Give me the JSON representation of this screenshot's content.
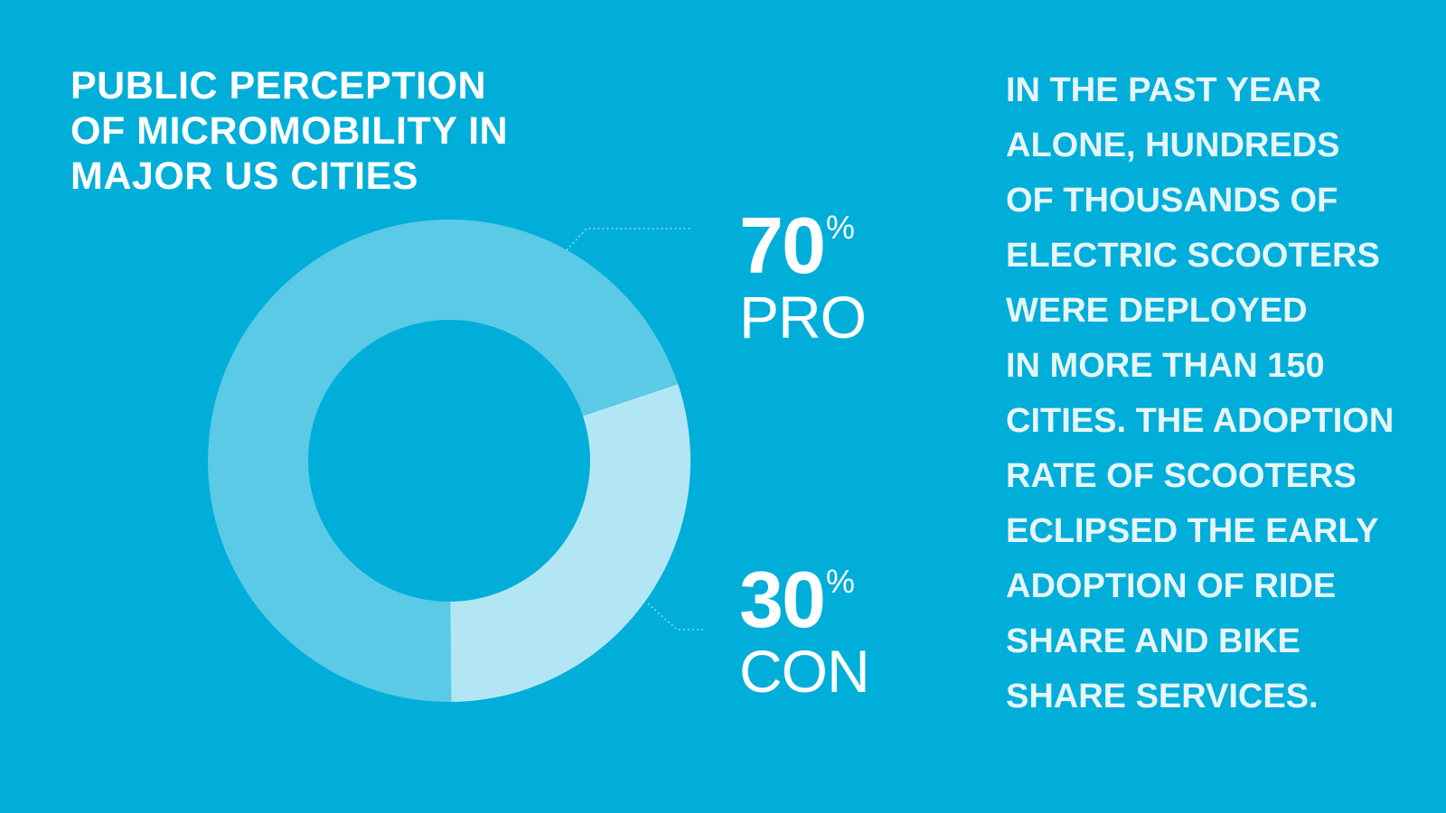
{
  "title_lines": [
    "PUBLIC PERCEPTION",
    "OF MICROMOBILITY IN",
    "MAJOR US CITIES"
  ],
  "chart_data": {
    "type": "pie",
    "donut": true,
    "categories": [
      "PRO",
      "CON"
    ],
    "values": [
      70,
      30
    ],
    "unit": "%",
    "title": "PUBLIC PERCEPTION OF MICROMOBILITY IN MAJOR US CITIES",
    "colors": [
      "#5BCAE6",
      "#B3E6F4"
    ]
  },
  "stats": {
    "pro": {
      "value": "70",
      "unit": "%",
      "label": "PRO"
    },
    "con": {
      "value": "30",
      "unit": "%",
      "label": "CON"
    }
  },
  "body_lines": [
    "IN THE PAST YEAR",
    "ALONE, HUNDREDS",
    "OF THOUSANDS OF",
    "ELECTRIC SCOOTERS",
    "WERE DEPLOYED",
    "IN MORE THAN 150",
    "CITIES. THE ADOPTION",
    "RATE OF SCOOTERS",
    "ECLIPSED THE EARLY",
    "ADOPTION OF RIDE",
    "SHARE AND BIKE",
    "SHARE SERVICES."
  ],
  "colors": {
    "background": "#00AEDA",
    "leader_line": "#8FD8EE",
    "body_text": "#E6F6FB"
  }
}
